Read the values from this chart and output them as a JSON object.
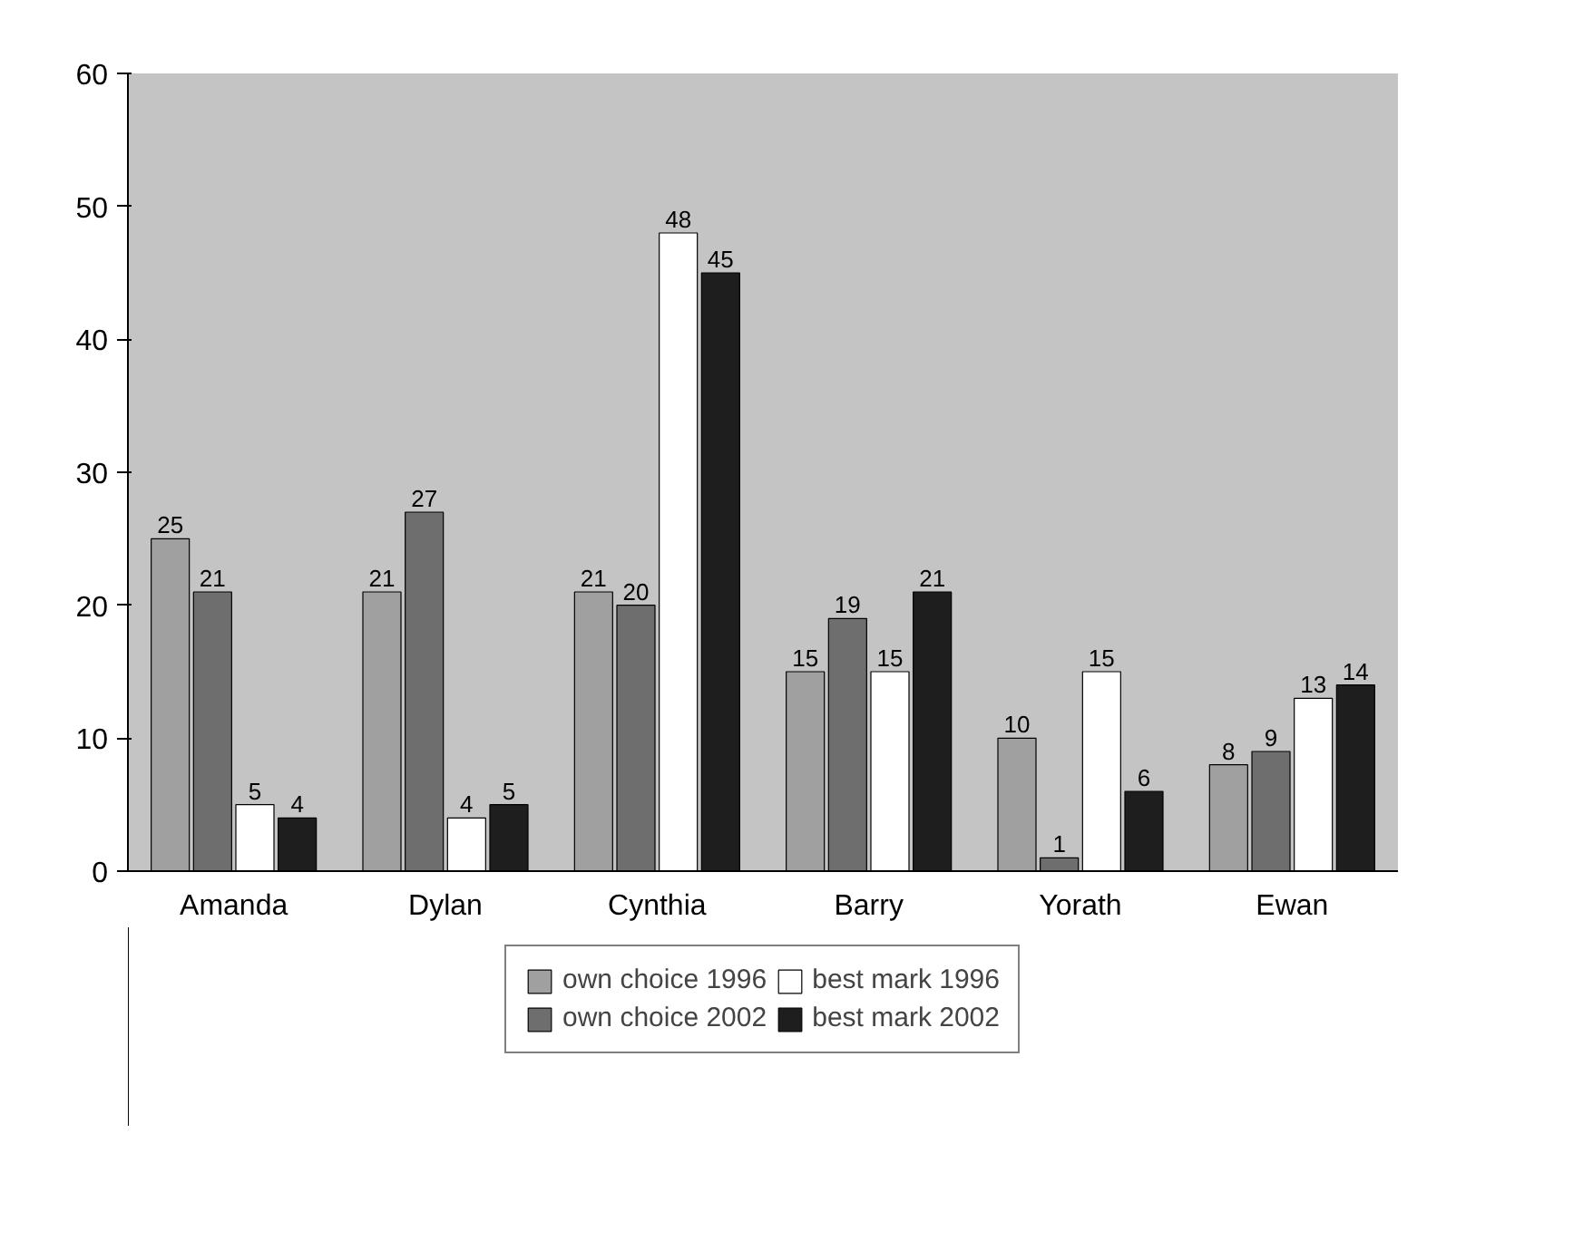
{
  "chart_data": {
    "type": "bar",
    "categories": [
      "Amanda",
      "Dylan",
      "Cynthia",
      "Barry",
      "Yorath",
      "Ewan"
    ],
    "series": [
      {
        "name": "own choice 1996",
        "color": "#a0a0a0",
        "values": [
          25,
          21,
          21,
          15,
          10,
          8
        ]
      },
      {
        "name": "own choice 2002",
        "color": "#6e6e6e",
        "values": [
          21,
          27,
          20,
          19,
          1,
          9
        ]
      },
      {
        "name": "best mark 1996",
        "color": "#ffffff",
        "values": [
          5,
          4,
          48,
          15,
          15,
          13
        ]
      },
      {
        "name": "best mark 2002",
        "color": "#1e1e1e",
        "values": [
          4,
          5,
          45,
          21,
          6,
          14
        ]
      }
    ],
    "ylim": [
      0,
      60
    ],
    "yticks": [
      0,
      10,
      20,
      30,
      40,
      50,
      60
    ],
    "grid": false,
    "legend": "bottom",
    "data_labels": true
  }
}
